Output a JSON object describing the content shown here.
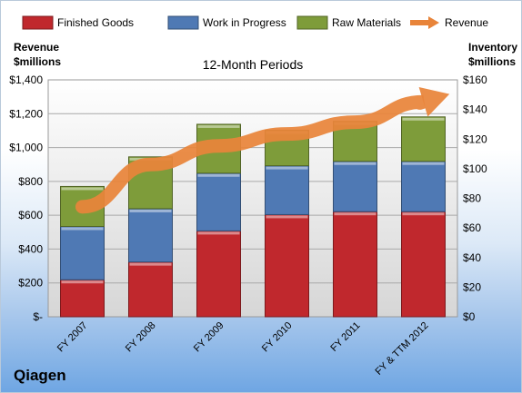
{
  "chart_data": {
    "type": "bar",
    "stacked": true,
    "title": "12-Month Periods",
    "company": "Qiagen",
    "categories": [
      "FY 2007",
      "FY 2008",
      "FY 2009",
      "FY 2010",
      "FY 2011",
      "FY & TTM 2012"
    ],
    "left_axis": {
      "label_line1": "Revenue",
      "label_line2": "$millions",
      "range": [
        0,
        1400
      ],
      "ticks": [
        0,
        200,
        400,
        600,
        800,
        1000,
        1200,
        1400
      ],
      "tick_labels": [
        "$-",
        "$200",
        "$400",
        "$600",
        "$800",
        "$1,000",
        "$1,200",
        "$1,400"
      ]
    },
    "right_axis": {
      "label_line1": "Inventory",
      "label_line2": "$millions",
      "range": [
        0,
        160
      ],
      "ticks": [
        0,
        20,
        40,
        60,
        80,
        100,
        120,
        140,
        160
      ],
      "tick_labels": [
        "$0",
        "$20",
        "$40",
        "$60",
        "$80",
        "$100",
        "$120",
        "$140",
        "$160"
      ]
    },
    "series": [
      {
        "name": "Finished Goods",
        "axis": "right",
        "color": "#c0282d",
        "values": [
          25,
          37,
          58,
          69,
          71,
          71
        ]
      },
      {
        "name": "Work in Progress",
        "axis": "right",
        "color": "#4f79b4",
        "values": [
          36,
          36,
          39,
          33,
          34,
          34
        ]
      },
      {
        "name": "Raw Materials",
        "axis": "right",
        "color": "#7e9c3a",
        "values": [
          27,
          35,
          33,
          24,
          27,
          30
        ]
      },
      {
        "name": "Revenue",
        "axis": "left",
        "type": "arrow",
        "color": "#e8843a",
        "values": [
          650,
          900,
          1010,
          1080,
          1150,
          1270
        ]
      }
    ],
    "grid": true,
    "legend_position": "top"
  }
}
